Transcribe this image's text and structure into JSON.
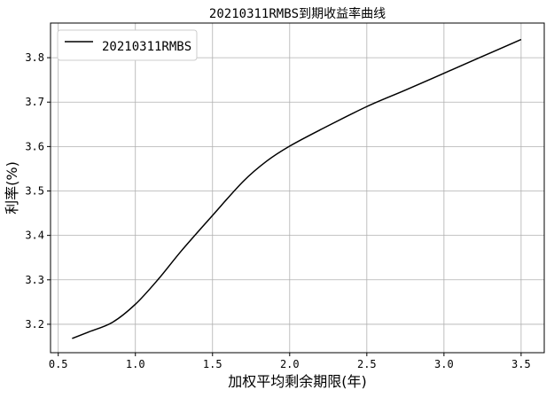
{
  "chart_data": {
    "type": "line",
    "title": "20210311RMBS到期收益率曲线",
    "xlabel": "加权平均剩余期限(年)",
    "ylabel": "利率(%)",
    "xlim": [
      0.45,
      3.65
    ],
    "ylim": [
      3.136,
      3.878
    ],
    "xticks": [
      0.5,
      1.0,
      1.5,
      2.0,
      2.5,
      3.0,
      3.5
    ],
    "xtick_labels": [
      "0.5",
      "1.0",
      "1.5",
      "2.0",
      "2.5",
      "3.0",
      "3.5"
    ],
    "yticks": [
      3.2,
      3.3,
      3.4,
      3.5,
      3.6,
      3.7,
      3.8
    ],
    "ytick_labels": [
      "3.2",
      "3.3",
      "3.4",
      "3.5",
      "3.6",
      "3.7",
      "3.8"
    ],
    "grid": true,
    "legend_position": "top-left",
    "series": [
      {
        "name": "20210311RMBS",
        "color": "#000000",
        "x": [
          0.59,
          0.7,
          0.85,
          1.0,
          1.15,
          1.3,
          1.5,
          1.7,
          1.85,
          2.0,
          2.2,
          2.5,
          2.75,
          3.0,
          3.25,
          3.5
        ],
        "y": [
          3.168,
          3.183,
          3.204,
          3.245,
          3.302,
          3.366,
          3.445,
          3.522,
          3.567,
          3.601,
          3.638,
          3.69,
          3.727,
          3.765,
          3.803,
          3.841
        ]
      }
    ]
  }
}
